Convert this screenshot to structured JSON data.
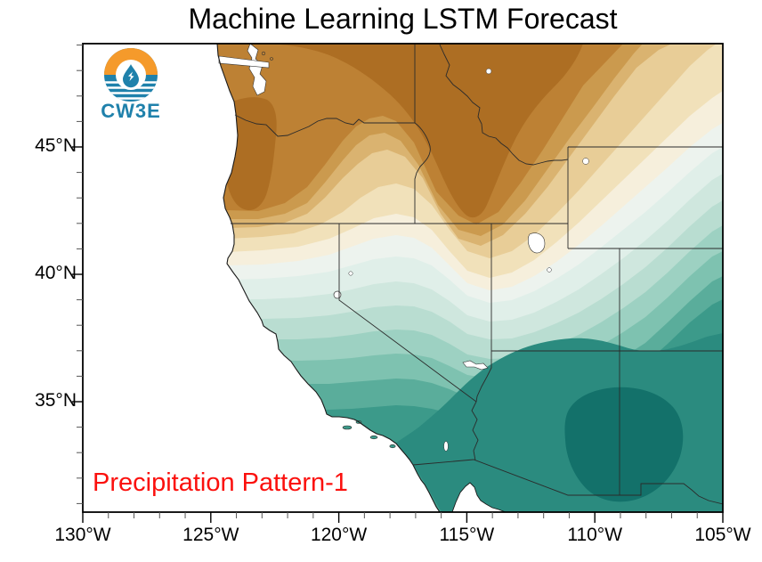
{
  "title": "Machine Learning LSTM Forecast",
  "annotation": {
    "text": "Precipitation Pattern-1",
    "color": "#fb100d"
  },
  "logo": {
    "label": "CW3E",
    "orange": "#f59a2b",
    "blue": "#1f81ab"
  },
  "axes": {
    "x": {
      "unit": "degrees west",
      "range": [
        130,
        105
      ],
      "minor_step_deg": 1,
      "ticks": [
        {
          "lon": 130,
          "label": "130°W"
        },
        {
          "lon": 125,
          "label": "125°W"
        },
        {
          "lon": 120,
          "label": "120°W"
        },
        {
          "lon": 115,
          "label": "115°W"
        },
        {
          "lon": 110,
          "label": "110°W"
        },
        {
          "lon": 105,
          "label": "105°W"
        }
      ]
    },
    "y": {
      "unit": "degrees north",
      "range": [
        49,
        31
      ],
      "minor_step_deg": 1,
      "ticks": [
        {
          "lat": 45,
          "label": "45°N"
        },
        {
          "lat": 40,
          "label": "40°N"
        },
        {
          "lat": 35,
          "label": "35°N"
        }
      ]
    }
  },
  "chart_data": {
    "type": "heatmap",
    "subtype": "filled_contour_map",
    "title": "Machine Learning LSTM Forecast",
    "annotation": "Precipitation Pattern-1",
    "region": "Western United States, 130°W–105°W, ~31°N–49°N",
    "projection": "cylindrical equidistant",
    "x_tick_labels": [
      "130°W",
      "125°W",
      "120°W",
      "115°W",
      "110°W",
      "105°W"
    ],
    "y_tick_labels": [
      "45°N",
      "40°N",
      "35°N"
    ],
    "legend": "none (no colorbar shown)",
    "palette_north_to_south": [
      "#ad6e23",
      "#bd8134",
      "#cb9a4e",
      "#dab370",
      "#e8cd97",
      "#f1e1ba",
      "#f6efdc",
      "#edf3ee",
      "#e0efe9",
      "#cfe7de",
      "#b9ddd1",
      "#9dd1c2",
      "#7ec2b0",
      "#5aad9b",
      "#3c9a8a",
      "#2b8b7f",
      "#13716a"
    ],
    "pattern_description": "Diverging brown-to-teal contour field: strongest brown (dry) anomaly centered over Idaho / eastern Washington and the Pacific Northwest; near-neutral cream/white band around 40–42°N; teal (wet) anomaly strengthening southward with the darkest maximum over southeastern Arizona and southwestern New Mexico.",
    "features": {
      "coastline": "Pacific coast, Gulf of California notch, Channel Islands",
      "state_borders": [
        "WA",
        "OR",
        "CA",
        "NV",
        "ID",
        "MT",
        "WY",
        "UT",
        "CO",
        "AZ",
        "NM"
      ],
      "lakes_masked_white": [
        "Puget Sound",
        "Great Salt Lake",
        "Lake Tahoe",
        "Pyramid Lake",
        "Lake Mead",
        "Yellowstone Lake",
        "Flathead Lake",
        "Utah Lake",
        "Salton Sea"
      ]
    }
  }
}
